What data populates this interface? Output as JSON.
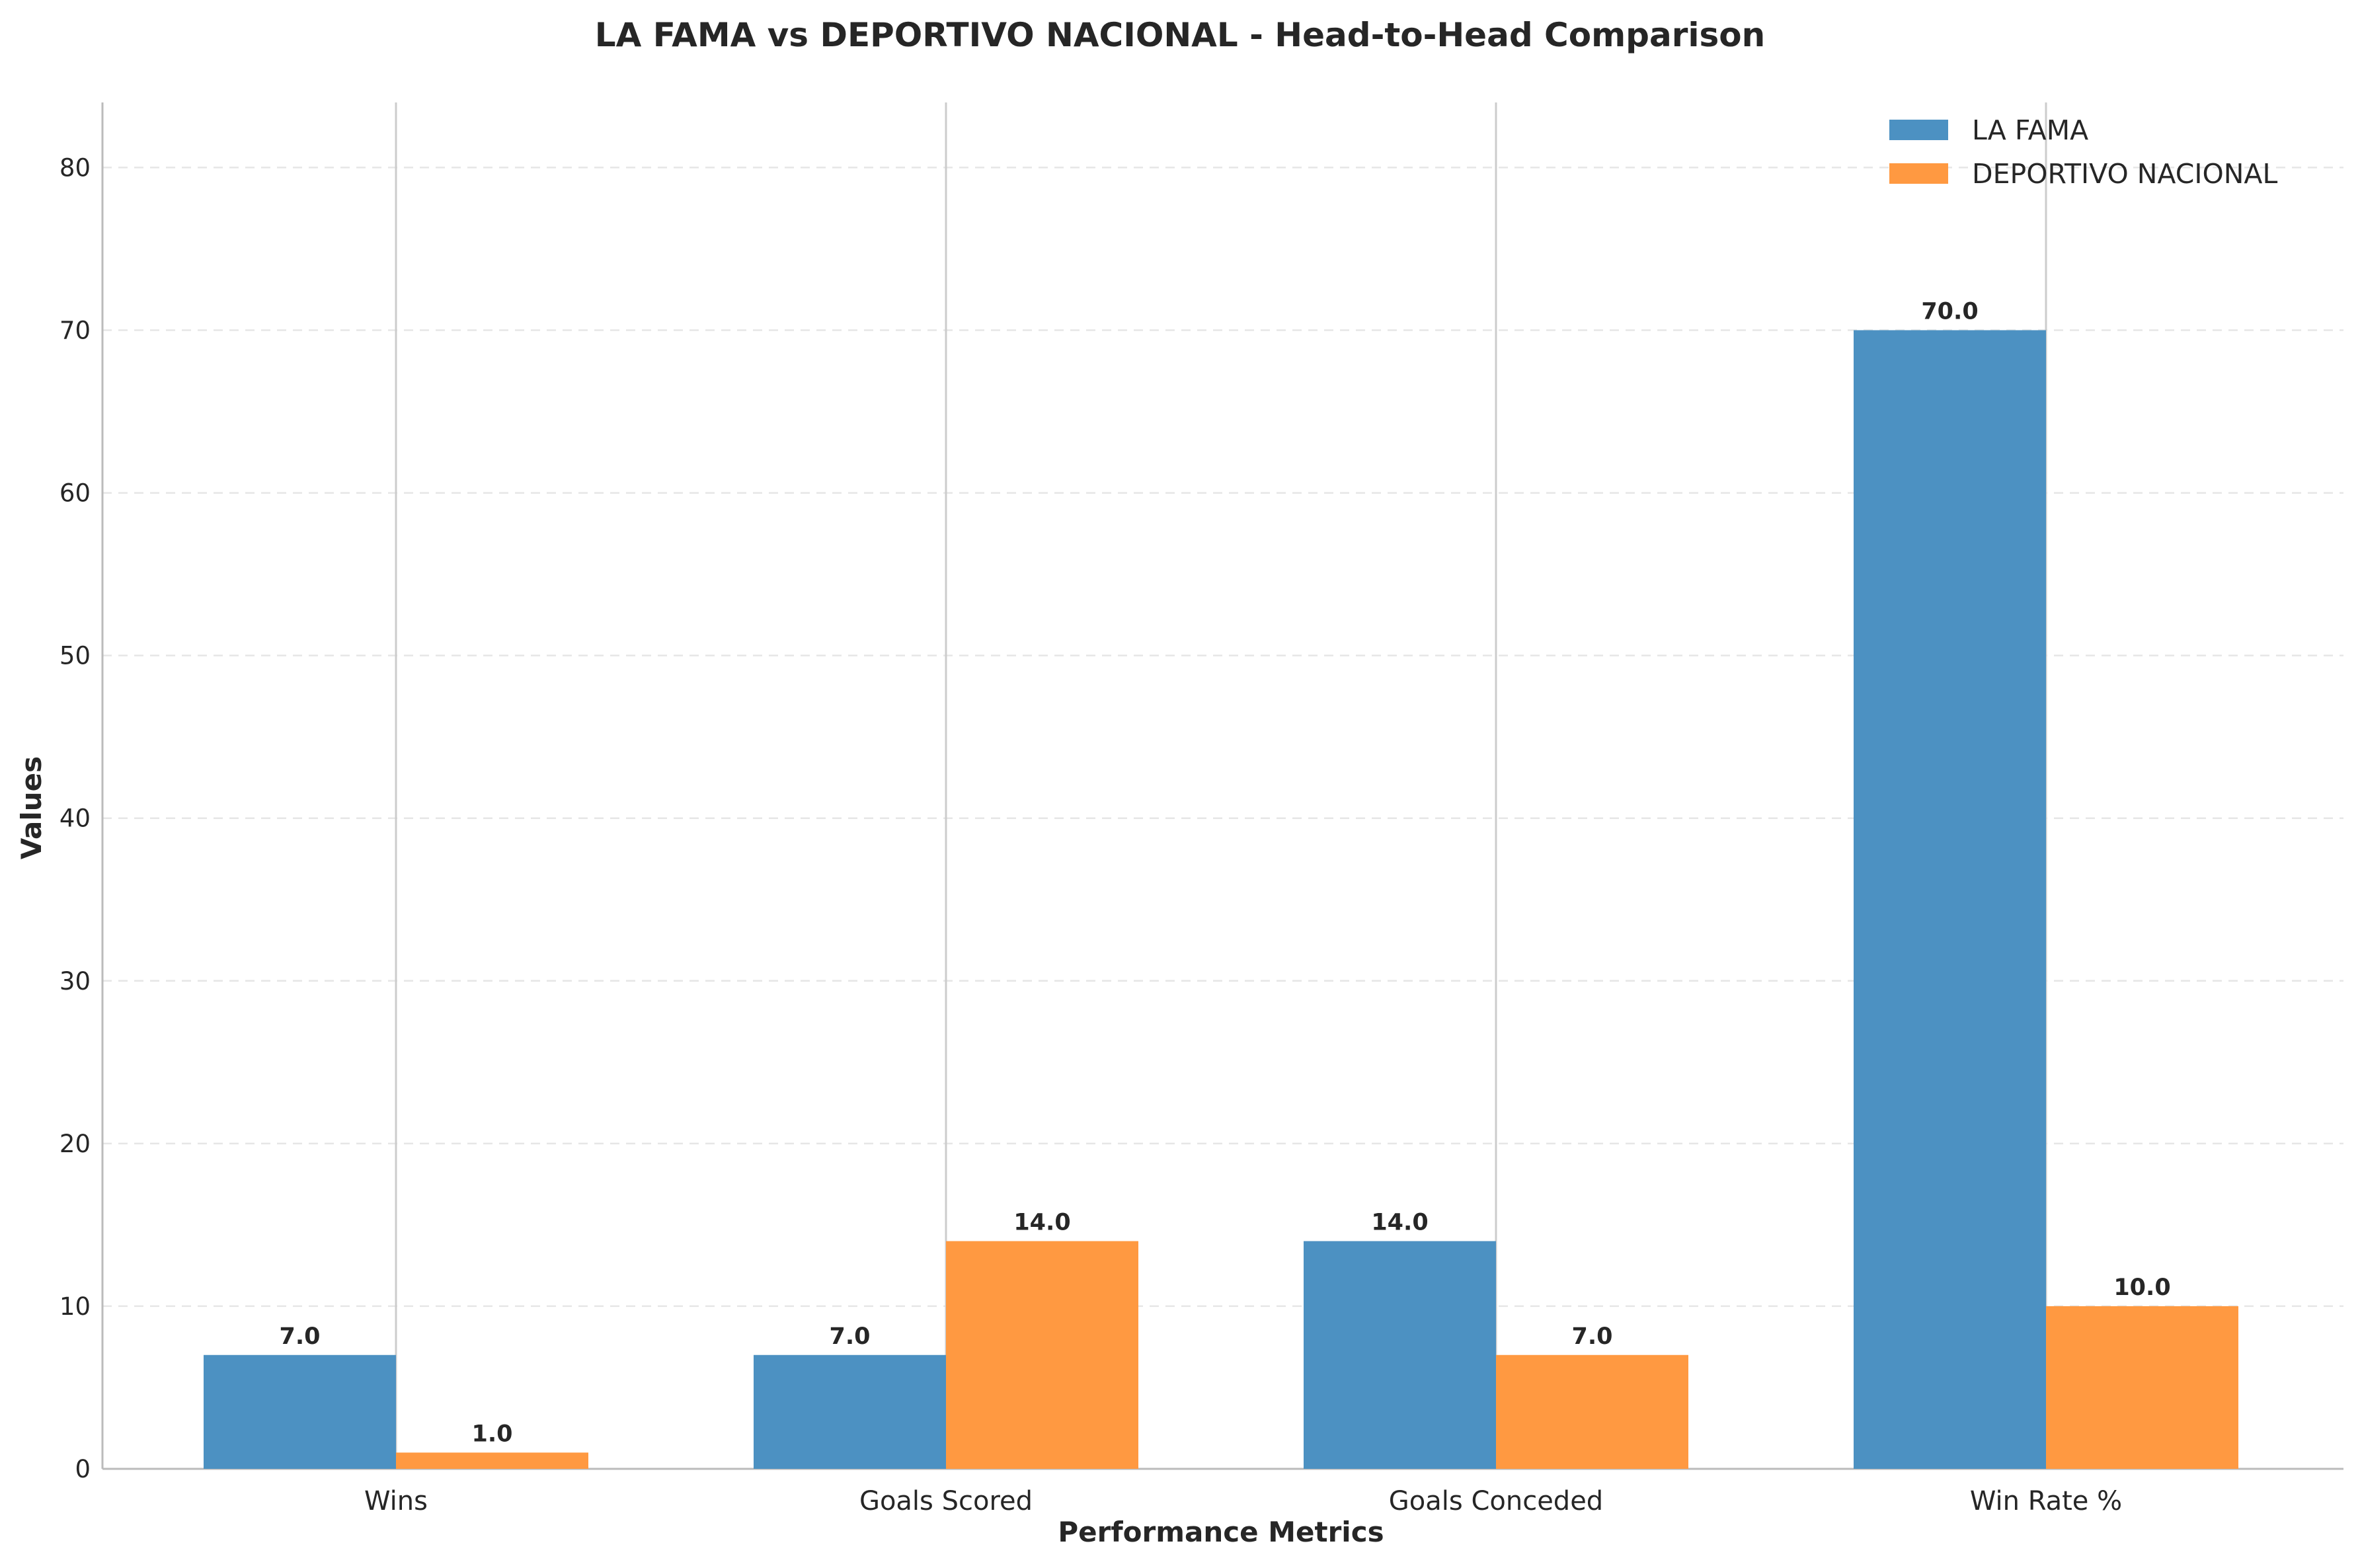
{
  "chart_data": {
    "type": "bar",
    "title": "LA FAMA vs DEPORTIVO NACIONAL - Head-to-Head Comparison",
    "xlabel": "Performance Metrics",
    "ylabel": "Values",
    "categories": [
      "Wins",
      "Goals Scored",
      "Goals Conceded",
      "Win Rate %"
    ],
    "series": [
      {
        "name": "LA FAMA",
        "values": [
          7.0,
          7.0,
          14.0,
          70.0
        ],
        "labels": [
          "7.0",
          "7.0",
          "14.0",
          "70.0"
        ],
        "color": "#4c91c2"
      },
      {
        "name": "DEPORTIVO NACIONAL",
        "values": [
          1.0,
          14.0,
          7.0,
          10.0
        ],
        "labels": [
          "1.0",
          "14.0",
          "7.0",
          "10.0"
        ],
        "color": "#ff9941"
      }
    ],
    "ylim": [
      0,
      84
    ],
    "yticks": [
      0,
      10,
      20,
      30,
      40,
      50,
      60,
      70,
      80
    ],
    "ytick_labels": [
      "0",
      "10",
      "20",
      "30",
      "40",
      "50",
      "60",
      "70",
      "80"
    ],
    "grid": "y-dashed",
    "legend_position": "top-right"
  }
}
